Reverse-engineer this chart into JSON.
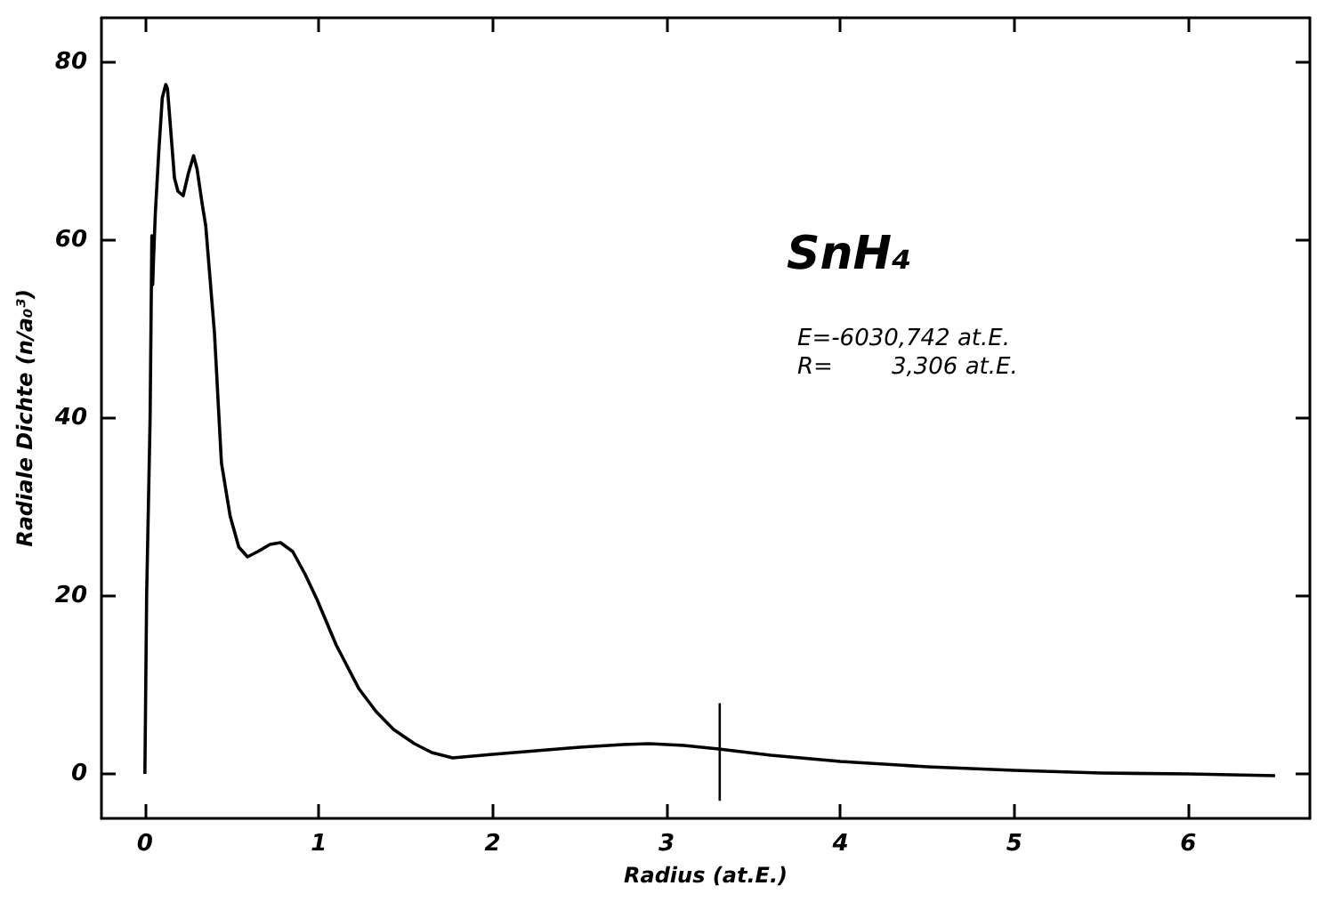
{
  "chart_data": {
    "type": "line",
    "xlabel": "Radius (at.E.)",
    "ylabel": "Radiale Dichte (n/a₀³)",
    "annotations": [
      "SnH₄",
      "E=-6030,742 at.E.",
      "R=        3,306 at.E."
    ],
    "x": [
      0,
      0.01,
      0.03,
      0.04,
      0.045,
      0.05,
      0.06,
      0.08,
      0.1,
      0.12,
      0.13,
      0.15,
      0.17,
      0.19,
      0.22,
      0.25,
      0.28,
      0.3,
      0.33,
      0.35,
      0.4,
      0.44,
      0.49,
      0.54,
      0.59,
      0.65,
      0.72,
      0.78,
      0.85,
      0.92,
      0.99,
      1.1,
      1.23,
      1.33,
      1.43,
      1.55,
      1.65,
      1.77,
      2.0,
      2.25,
      2.5,
      2.75,
      2.9,
      3.1,
      3.3,
      3.6,
      4.0,
      4.5,
      5.0,
      5.5,
      6.0,
      6.5
    ],
    "values": [
      0,
      20,
      40,
      60.5,
      55,
      58,
      63,
      70,
      76,
      77.5,
      77,
      72,
      67,
      65.5,
      65,
      67.5,
      69.5,
      68,
      64,
      61.6,
      49.6,
      35,
      29,
      25.5,
      24.4,
      25,
      25.8,
      26,
      25,
      22.5,
      19.6,
      14.5,
      9.6,
      7,
      5,
      3.4,
      2.4,
      1.8,
      2.2,
      2.6,
      3,
      3.3,
      3.4,
      3.2,
      2.8,
      2.1,
      1.4,
      0.8,
      0.4,
      0.1,
      0,
      -0.2
    ],
    "color": "#000000",
    "xlim": [
      -0.25,
      6.7
    ],
    "ylim": [
      -5,
      85
    ],
    "xticks": [
      0,
      1,
      2,
      3,
      4,
      5,
      6
    ],
    "yticks": [
      0,
      20,
      40,
      60,
      80
    ],
    "ref_lines": [
      {
        "axis": "x",
        "value": 3.306,
        "label": null
      }
    ],
    "grid": false,
    "marker": "none",
    "line_style": "solid"
  }
}
